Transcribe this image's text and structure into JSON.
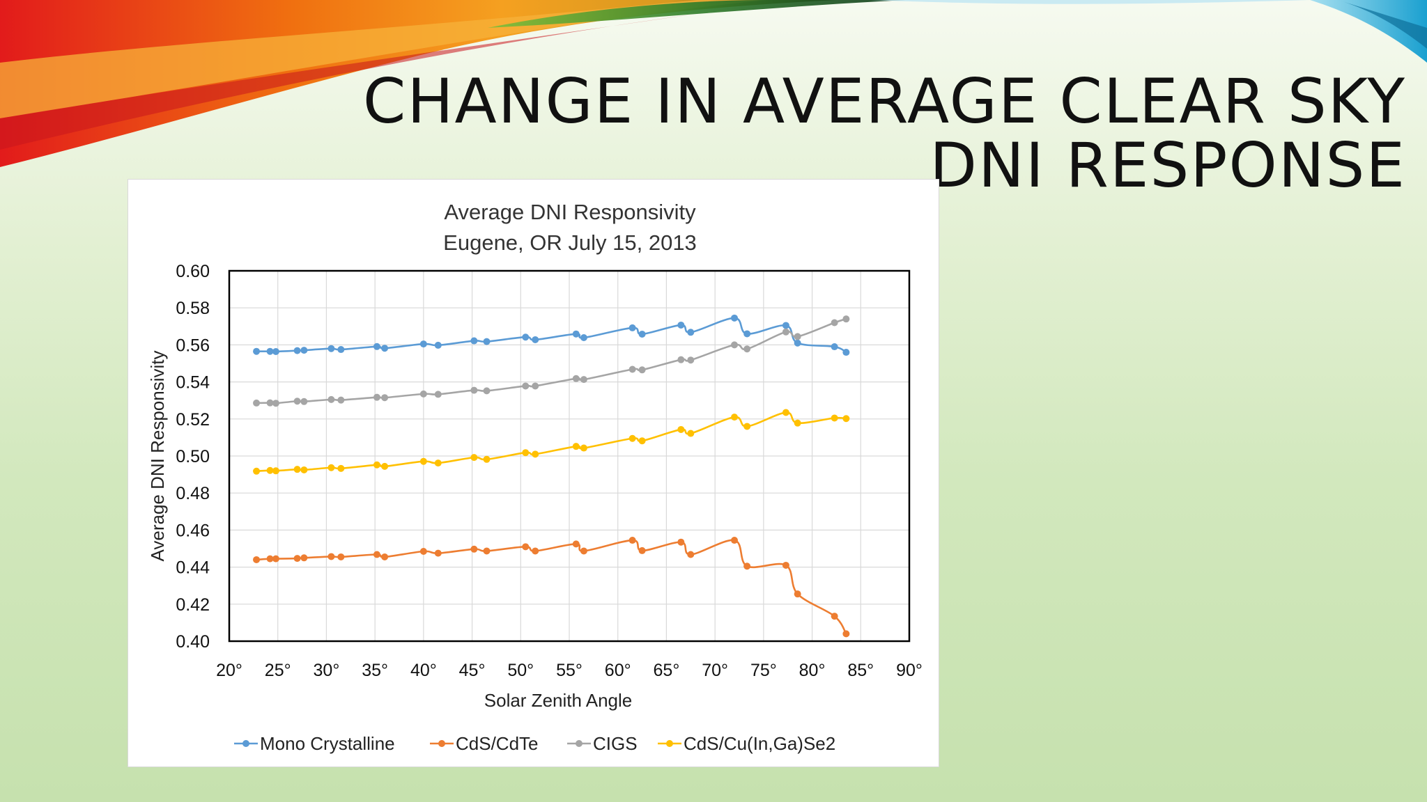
{
  "slide": {
    "title_line1": "CHANGE IN AVERAGE CLEAR SKY",
    "title_line2": "DNI RESPONSE"
  },
  "chart_data": {
    "type": "line",
    "title": "Average DNI Responsivity",
    "subtitle": "Eugene, OR  July 15, 2013",
    "xlabel": "Solar Zenith Angle",
    "ylabel": "Average DNI Responsivity",
    "xlim": [
      20,
      90
    ],
    "ylim": [
      0.4,
      0.6
    ],
    "x_ticks": [
      "20°",
      "25°",
      "30°",
      "35°",
      "40°",
      "45°",
      "50°",
      "55°",
      "60°",
      "65°",
      "70°",
      "75°",
      "80°",
      "85°",
      "90°"
    ],
    "y_ticks": [
      "0.40",
      "0.42",
      "0.44",
      "0.46",
      "0.48",
      "0.50",
      "0.52",
      "0.54",
      "0.56",
      "0.58",
      "0.60"
    ],
    "grid": true,
    "legend_position": "bottom",
    "series": [
      {
        "name": "Mono Crystalline",
        "color": "#5b9bd5",
        "x": [
          83.5,
          82.3,
          78.5,
          77.3,
          73.3,
          72.0,
          67.5,
          66.5,
          62.5,
          61.5,
          56.5,
          55.7,
          51.5,
          50.5,
          46.5,
          45.2,
          41.5,
          40.0,
          36.0,
          35.2,
          31.5,
          30.5,
          27.7,
          27.0,
          24.8,
          24.2,
          22.8
        ],
        "y": [
          0.556,
          0.559,
          0.561,
          0.5705,
          0.566,
          0.5745,
          0.5668,
          0.5707,
          0.5658,
          0.5692,
          0.5639,
          0.5659,
          0.5628,
          0.5642,
          0.5618,
          0.5622,
          0.5598,
          0.5605,
          0.5582,
          0.5591,
          0.5575,
          0.558,
          0.5571,
          0.5569,
          0.5564,
          0.5565,
          0.5565
        ]
      },
      {
        "name": "CdS/CdTe",
        "color": "#ed7d31",
        "x": [
          83.5,
          82.3,
          78.5,
          77.3,
          73.3,
          72.0,
          67.5,
          66.5,
          62.5,
          61.5,
          56.5,
          55.7,
          51.5,
          50.5,
          46.5,
          45.2,
          41.5,
          40.0,
          36.0,
          35.2,
          31.5,
          30.5,
          27.7,
          27.0,
          24.8,
          24.2,
          22.8
        ],
        "y": [
          0.404,
          0.4135,
          0.4255,
          0.441,
          0.4405,
          0.4545,
          0.4468,
          0.4535,
          0.4489,
          0.4545,
          0.4487,
          0.4525,
          0.4487,
          0.451,
          0.4487,
          0.4497,
          0.4475,
          0.4485,
          0.4455,
          0.4468,
          0.4455,
          0.4457,
          0.445,
          0.4447,
          0.4445,
          0.4445,
          0.444
        ]
      },
      {
        "name": "CIGS",
        "color": "#a5a5a5",
        "x": [
          83.5,
          82.3,
          78.5,
          77.3,
          73.3,
          72.0,
          67.5,
          66.5,
          62.5,
          61.5,
          56.5,
          55.7,
          51.5,
          50.5,
          46.5,
          45.2,
          41.5,
          40.0,
          36.0,
          35.2,
          31.5,
          30.5,
          27.7,
          27.0,
          24.8,
          24.2,
          22.8
        ],
        "y": [
          0.574,
          0.572,
          0.5645,
          0.567,
          0.5578,
          0.56,
          0.5518,
          0.552,
          0.5465,
          0.5468,
          0.5413,
          0.5418,
          0.5378,
          0.5378,
          0.5352,
          0.5355,
          0.5333,
          0.5335,
          0.5315,
          0.5317,
          0.5302,
          0.5305,
          0.5294,
          0.5296,
          0.5285,
          0.5287,
          0.5286
        ]
      },
      {
        "name": "CdS/Cu(In,Ga)Se2",
        "color": "#ffc000",
        "x": [
          83.5,
          82.3,
          78.5,
          77.3,
          73.3,
          72.0,
          67.5,
          66.5,
          62.5,
          61.5,
          56.5,
          55.7,
          51.5,
          50.5,
          46.5,
          45.2,
          41.5,
          40.0,
          36.0,
          35.2,
          31.5,
          30.5,
          27.7,
          27.0,
          24.8,
          24.2,
          22.8
        ],
        "y": [
          0.5202,
          0.5205,
          0.5178,
          0.5235,
          0.516,
          0.521,
          0.5122,
          0.5143,
          0.5082,
          0.5095,
          0.5043,
          0.5052,
          0.501,
          0.5018,
          0.4982,
          0.4992,
          0.4962,
          0.4971,
          0.4944,
          0.4952,
          0.4933,
          0.4937,
          0.4925,
          0.4928,
          0.492,
          0.4922,
          0.4918
        ]
      }
    ]
  }
}
